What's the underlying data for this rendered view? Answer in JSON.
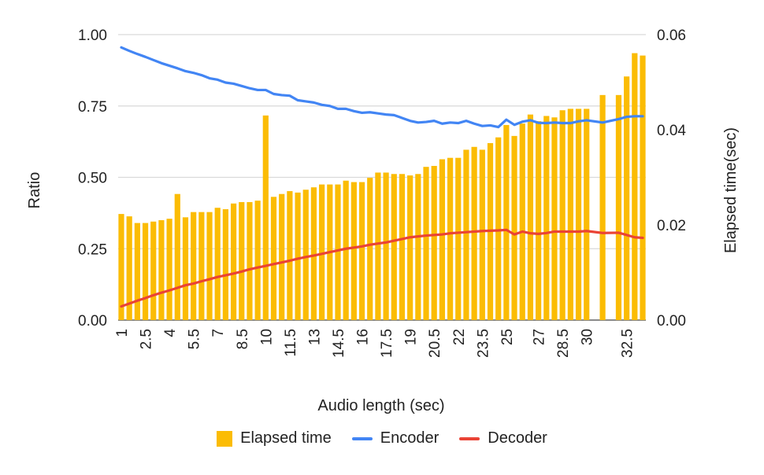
{
  "chart_data": {
    "type": "bar+line",
    "xlabel": "Audio length (sec)",
    "ylabel_left": "Ratio",
    "ylabel_right": "Elapsed time(sec)",
    "ylim_left": [
      0,
      1
    ],
    "ylim_right": [
      0,
      0.06
    ],
    "yticks_left": [
      "0.00",
      "0.25",
      "0.50",
      "0.75",
      "1.00"
    ],
    "yticks_right": [
      "0.00",
      "0.02",
      "0.04",
      "0.06"
    ],
    "xticks": [
      "1",
      "2.5",
      "4",
      "5.5",
      "7",
      "8.5",
      "10",
      "11.5",
      "13",
      "14.5",
      "16",
      "17.5",
      "19",
      "20.5",
      "22",
      "23.5",
      "25",
      "27",
      "28.5",
      "30",
      "32.5"
    ],
    "grid": true,
    "legend_position": "bottom",
    "colors": {
      "elapsed": "#FBBC04",
      "encoder": "#4285F4",
      "decoder": "#EA4335",
      "grid": "#d9d9d9"
    },
    "x": [
      1,
      1.5,
      2,
      2.5,
      3,
      3.5,
      4,
      4.5,
      5,
      5.5,
      6,
      6.5,
      7,
      7.5,
      8,
      8.5,
      9,
      9.5,
      10,
      10.5,
      11,
      11.5,
      12,
      12.5,
      13,
      13.5,
      14,
      14.5,
      15,
      15.5,
      16,
      16.5,
      17,
      17.5,
      18,
      18.5,
      19,
      19.5,
      20,
      20.5,
      21,
      21.5,
      22,
      22.5,
      23,
      23.5,
      24,
      24.5,
      25,
      25.5,
      26,
      26.5,
      27,
      27.5,
      28,
      28.5,
      29,
      29.5,
      30,
      31,
      32,
      32.5,
      33,
      33.5
    ],
    "series": [
      {
        "name": "Elapsed time",
        "type": "bar",
        "axis": "right",
        "values": [
          0.0223,
          0.0218,
          0.0204,
          0.0204,
          0.0207,
          0.021,
          0.0213,
          0.0265,
          0.0216,
          0.0227,
          0.0227,
          0.0227,
          0.0236,
          0.0233,
          0.0245,
          0.0248,
          0.0248,
          0.0251,
          0.043,
          0.0259,
          0.0265,
          0.0271,
          0.0268,
          0.0274,
          0.0279,
          0.0285,
          0.0285,
          0.0285,
          0.0293,
          0.029,
          0.029,
          0.0299,
          0.031,
          0.031,
          0.0307,
          0.0307,
          0.0304,
          0.0307,
          0.0322,
          0.0324,
          0.0338,
          0.0341,
          0.0341,
          0.0358,
          0.0364,
          0.0358,
          0.0372,
          0.0384,
          0.041,
          0.0387,
          0.0413,
          0.0432,
          0.0418,
          0.0429,
          0.0426,
          0.0441,
          0.0444,
          0.0444,
          0.0444,
          0.0473,
          0.0473,
          0.0512,
          0.0561,
          0.0556
        ]
      },
      {
        "name": "Encoder",
        "type": "line",
        "axis": "left",
        "values": [
          0.955,
          0.943,
          0.932,
          0.922,
          0.911,
          0.9,
          0.891,
          0.882,
          0.872,
          0.866,
          0.858,
          0.847,
          0.842,
          0.832,
          0.828,
          0.82,
          0.812,
          0.806,
          0.806,
          0.792,
          0.788,
          0.786,
          0.77,
          0.766,
          0.762,
          0.754,
          0.75,
          0.74,
          0.74,
          0.732,
          0.726,
          0.728,
          0.724,
          0.72,
          0.718,
          0.708,
          0.698,
          0.692,
          0.694,
          0.698,
          0.688,
          0.692,
          0.69,
          0.698,
          0.688,
          0.68,
          0.682,
          0.676,
          0.702,
          0.684,
          0.695,
          0.7,
          0.691,
          0.69,
          0.692,
          0.69,
          0.69,
          0.696,
          0.7,
          0.692,
          0.704,
          0.712,
          0.714,
          0.714
        ]
      },
      {
        "name": "Decoder",
        "type": "line",
        "axis": "left",
        "values": [
          0.048,
          0.058,
          0.068,
          0.077,
          0.087,
          0.096,
          0.104,
          0.113,
          0.122,
          0.128,
          0.136,
          0.143,
          0.151,
          0.157,
          0.163,
          0.17,
          0.178,
          0.184,
          0.19,
          0.196,
          0.202,
          0.208,
          0.215,
          0.221,
          0.226,
          0.232,
          0.238,
          0.244,
          0.25,
          0.254,
          0.258,
          0.264,
          0.268,
          0.272,
          0.278,
          0.284,
          0.29,
          0.293,
          0.296,
          0.298,
          0.3,
          0.304,
          0.306,
          0.308,
          0.31,
          0.312,
          0.313,
          0.314,
          0.316,
          0.3,
          0.31,
          0.304,
          0.302,
          0.305,
          0.31,
          0.31,
          0.31,
          0.31,
          0.312,
          0.305,
          0.306,
          0.298,
          0.29,
          0.288
        ]
      }
    ]
  },
  "legend": {
    "elapsed_label": "Elapsed time",
    "encoder_label": "Encoder",
    "decoder_label": "Decoder"
  }
}
